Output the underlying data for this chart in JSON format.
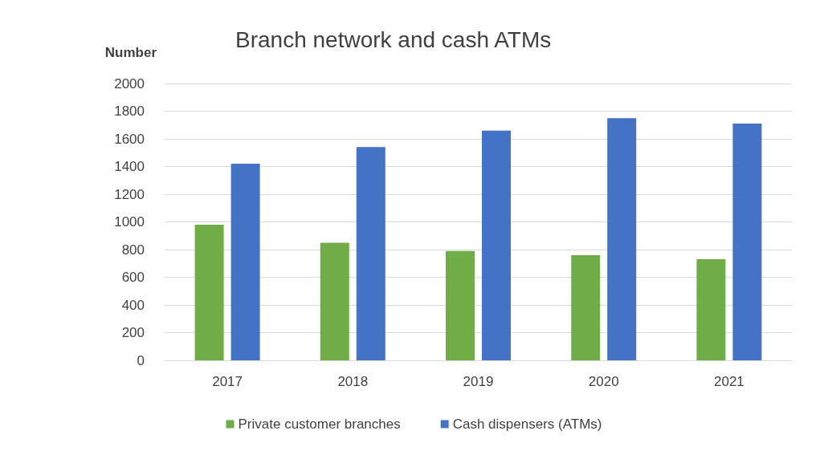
{
  "chart_data": {
    "type": "bar",
    "title": "Branch network and cash ATMs",
    "ylabel": "Number",
    "categories": [
      "2017",
      "2018",
      "2019",
      "2020",
      "2021"
    ],
    "series": [
      {
        "name": "Private customer branches",
        "color": "#70ad47",
        "values": [
          980,
          850,
          790,
          760,
          730
        ]
      },
      {
        "name": "Cash dispensers (ATMs)",
        "color": "#4472c4",
        "values": [
          1420,
          1540,
          1660,
          1750,
          1710
        ]
      }
    ],
    "ylim": [
      0,
      2000
    ],
    "yticks": [
      0,
      200,
      400,
      600,
      800,
      1000,
      1200,
      1400,
      1600,
      1800,
      2000
    ],
    "grid": "y",
    "legend": "bottom"
  }
}
